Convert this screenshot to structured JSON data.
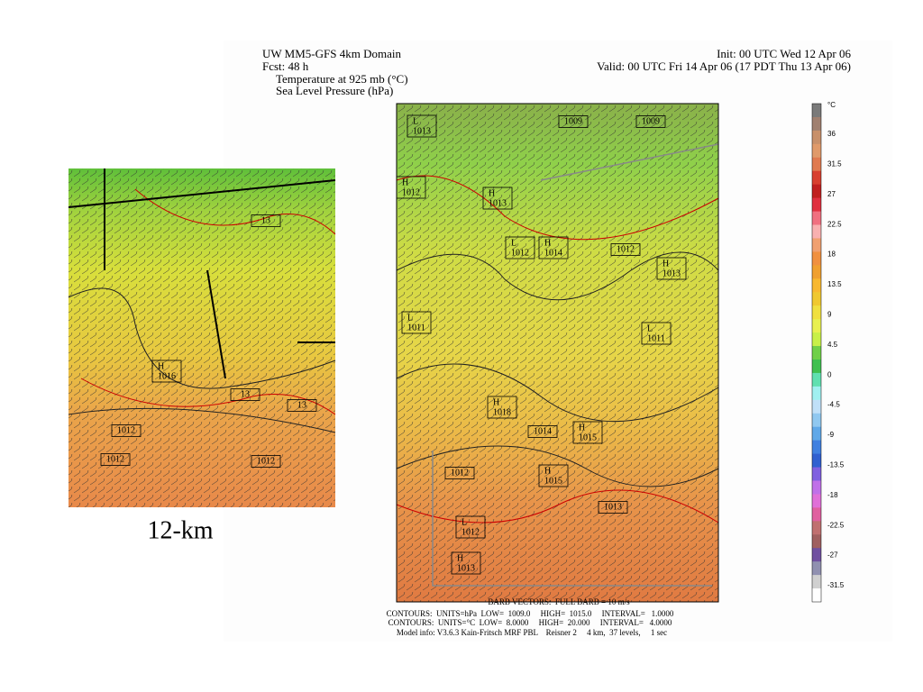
{
  "left_panel": {
    "caption": "12-km",
    "map_labels": [
      {
        "letter": "H",
        "value": "1016"
      },
      {
        "value": "1012"
      },
      {
        "value": "1012"
      },
      {
        "value": "1012"
      },
      {
        "value": "13"
      },
      {
        "value": "13"
      },
      {
        "value": "13"
      }
    ]
  },
  "right_panel": {
    "header": {
      "title": "UW MM5-GFS 4km Domain",
      "fcst": "Fcst:  48 h",
      "field1": "Temperature at 925 mb (°C)",
      "field2": "Sea Level Pressure (hPa)",
      "init": "Init: 00 UTC Wed 12 Apr 06",
      "valid": "Valid: 00 UTC Fri 14 Apr 06 (17 PDT Thu 13 Apr 06)"
    },
    "map_labels": [
      {
        "value": "1009"
      },
      {
        "value": "1009"
      },
      {
        "letter": "L",
        "value": "1013"
      },
      {
        "letter": "H",
        "value": "1012"
      },
      {
        "letter": "H",
        "value": "1013"
      },
      {
        "letter": "L",
        "value": "1012"
      },
      {
        "letter": "H",
        "value": "1014"
      },
      {
        "value": "1012"
      },
      {
        "letter": "H",
        "value": "1013"
      },
      {
        "letter": "L",
        "value": "1011"
      },
      {
        "letter": "L",
        "value": "1011"
      },
      {
        "letter": "H",
        "value": "1018"
      },
      {
        "value": "1014"
      },
      {
        "letter": "H",
        "value": "1015"
      },
      {
        "letter": "H",
        "value": "1015"
      },
      {
        "value": "1012"
      },
      {
        "letter": "L",
        "value": "1012"
      },
      {
        "letter": "H",
        "value": "1013"
      },
      {
        "value": "1013"
      }
    ],
    "colorbar": {
      "unit": "°C",
      "labels": [
        "36",
        "31.5",
        "27",
        "22.5",
        "18",
        "13.5",
        "9",
        "4.5",
        "0",
        "-4.5",
        "-9",
        "-13.5",
        "-18",
        "-22.5",
        "-27",
        "-31.5"
      ]
    },
    "footer": [
      "BARB VECTORS:  FULL BARB = 10 m/s",
      "CONTOURS:  UNITS=hPa  LOW=  1009.0     HIGH=  1015.0     INTERVAL=   1.0000",
      "CONTOURS:  UNITS=°C  LOW=  8.0000     HIGH=  20.000     INTERVAL=   4.0000",
      "Model info: V3.6.3 Kain-Fritsch MRF PBL    Reisner 2     4 km,  37 levels,     1 sec"
    ]
  }
}
